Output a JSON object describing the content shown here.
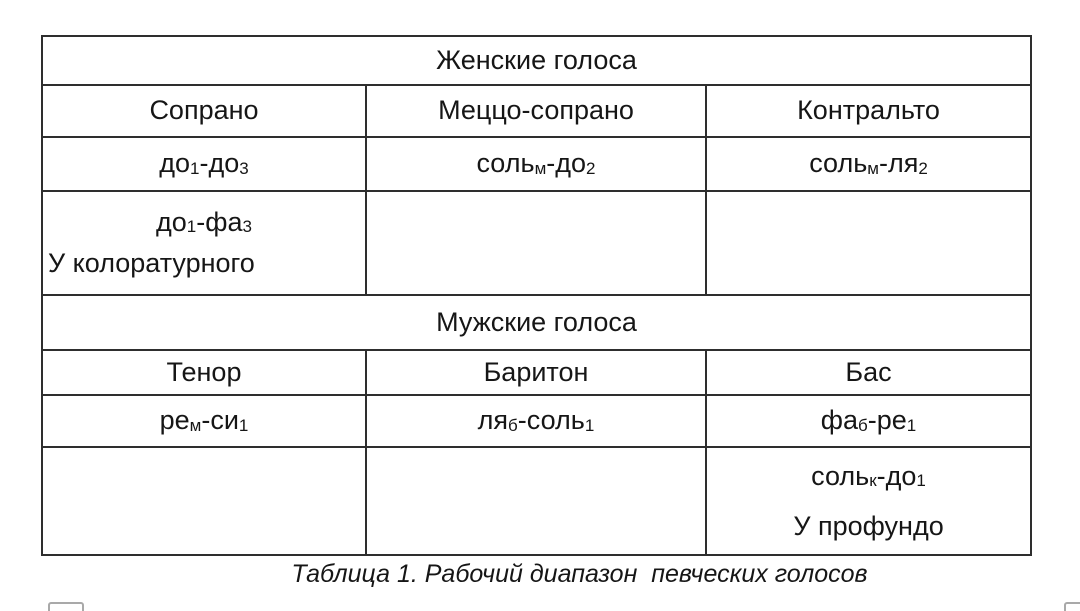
{
  "colors": {
    "background": "#ffffff",
    "border": "#2e2e2e",
    "text": "#161616",
    "artifact_border": "#a9a9a9"
  },
  "table": {
    "columns": 3,
    "rows": [
      {
        "kind": "section",
        "label": "Женские голоса"
      },
      {
        "kind": "cells",
        "cells": [
          {
            "lines": [
              {
                "align": "center",
                "segs": [
                  {
                    "t": "Сопрано"
                  }
                ]
              }
            ]
          },
          {
            "lines": [
              {
                "align": "center",
                "segs": [
                  {
                    "t": "Меццо-сопрано"
                  }
                ]
              }
            ]
          },
          {
            "lines": [
              {
                "align": "center",
                "segs": [
                  {
                    "t": "Контральто"
                  }
                ]
              }
            ]
          }
        ]
      },
      {
        "kind": "cells",
        "cells": [
          {
            "lines": [
              {
                "align": "center",
                "segs": [
                  {
                    "t": "до"
                  },
                  {
                    "t": "1",
                    "sub": true
                  },
                  {
                    "t": "-до"
                  },
                  {
                    "t": "3",
                    "sub": true
                  }
                ]
              }
            ]
          },
          {
            "lines": [
              {
                "align": "center",
                "segs": [
                  {
                    "t": "соль"
                  },
                  {
                    "t": "м",
                    "sub": true
                  },
                  {
                    "t": "-до"
                  },
                  {
                    "t": "2",
                    "sub": true
                  }
                ]
              }
            ]
          },
          {
            "lines": [
              {
                "align": "center",
                "segs": [
                  {
                    "t": "соль"
                  },
                  {
                    "t": "м",
                    "sub": true
                  },
                  {
                    "t": "-ля"
                  },
                  {
                    "t": "2",
                    "sub": true
                  }
                ]
              }
            ]
          }
        ]
      },
      {
        "kind": "cells",
        "cells": [
          {
            "lines": [
              {
                "align": "center",
                "segs": [
                  {
                    "t": "до"
                  },
                  {
                    "t": "1",
                    "sub": true
                  },
                  {
                    "t": "-фа"
                  },
                  {
                    "t": "3",
                    "sub": true
                  }
                ]
              },
              {
                "align": "left",
                "segs": [
                  {
                    "t": "У колоратурного"
                  }
                ]
              }
            ]
          },
          {
            "lines": []
          },
          {
            "lines": []
          }
        ]
      },
      {
        "kind": "section",
        "label": "Мужские голоса"
      },
      {
        "kind": "cells",
        "cells": [
          {
            "lines": [
              {
                "align": "center",
                "segs": [
                  {
                    "t": "Тенор"
                  }
                ]
              }
            ]
          },
          {
            "lines": [
              {
                "align": "center",
                "segs": [
                  {
                    "t": "Баритон"
                  }
                ]
              }
            ]
          },
          {
            "lines": [
              {
                "align": "center",
                "segs": [
                  {
                    "t": "Бас"
                  }
                ]
              }
            ]
          }
        ]
      },
      {
        "kind": "cells",
        "cells": [
          {
            "lines": [
              {
                "align": "center",
                "segs": [
                  {
                    "t": "ре"
                  },
                  {
                    "t": "м",
                    "sub": true
                  },
                  {
                    "t": "-си"
                  },
                  {
                    "t": "1",
                    "sub": true
                  }
                ]
              }
            ]
          },
          {
            "lines": [
              {
                "align": "center",
                "segs": [
                  {
                    "t": "ля"
                  },
                  {
                    "t": "б",
                    "sub": true
                  },
                  {
                    "t": "-соль"
                  },
                  {
                    "t": "1",
                    "sub": true
                  }
                ]
              }
            ]
          },
          {
            "lines": [
              {
                "align": "center",
                "segs": [
                  {
                    "t": "фа"
                  },
                  {
                    "t": "б",
                    "sub": true
                  },
                  {
                    "t": "-ре"
                  },
                  {
                    "t": "1",
                    "sub": true
                  }
                ]
              }
            ]
          }
        ]
      },
      {
        "kind": "cells",
        "cells": [
          {
            "lines": []
          },
          {
            "lines": []
          },
          {
            "lines": [
              {
                "align": "center",
                "segs": [
                  {
                    "t": "соль"
                  },
                  {
                    "t": "к",
                    "sub": true
                  },
                  {
                    "t": "-до"
                  },
                  {
                    "t": "1",
                    "sub": true
                  }
                ]
              },
              {
                "align": "center",
                "segs": [
                  {
                    "t": "У профундо"
                  }
                ]
              }
            ]
          }
        ]
      }
    ],
    "caption": "Таблица 1. Рабочий диапазон  певческих голосов"
  }
}
